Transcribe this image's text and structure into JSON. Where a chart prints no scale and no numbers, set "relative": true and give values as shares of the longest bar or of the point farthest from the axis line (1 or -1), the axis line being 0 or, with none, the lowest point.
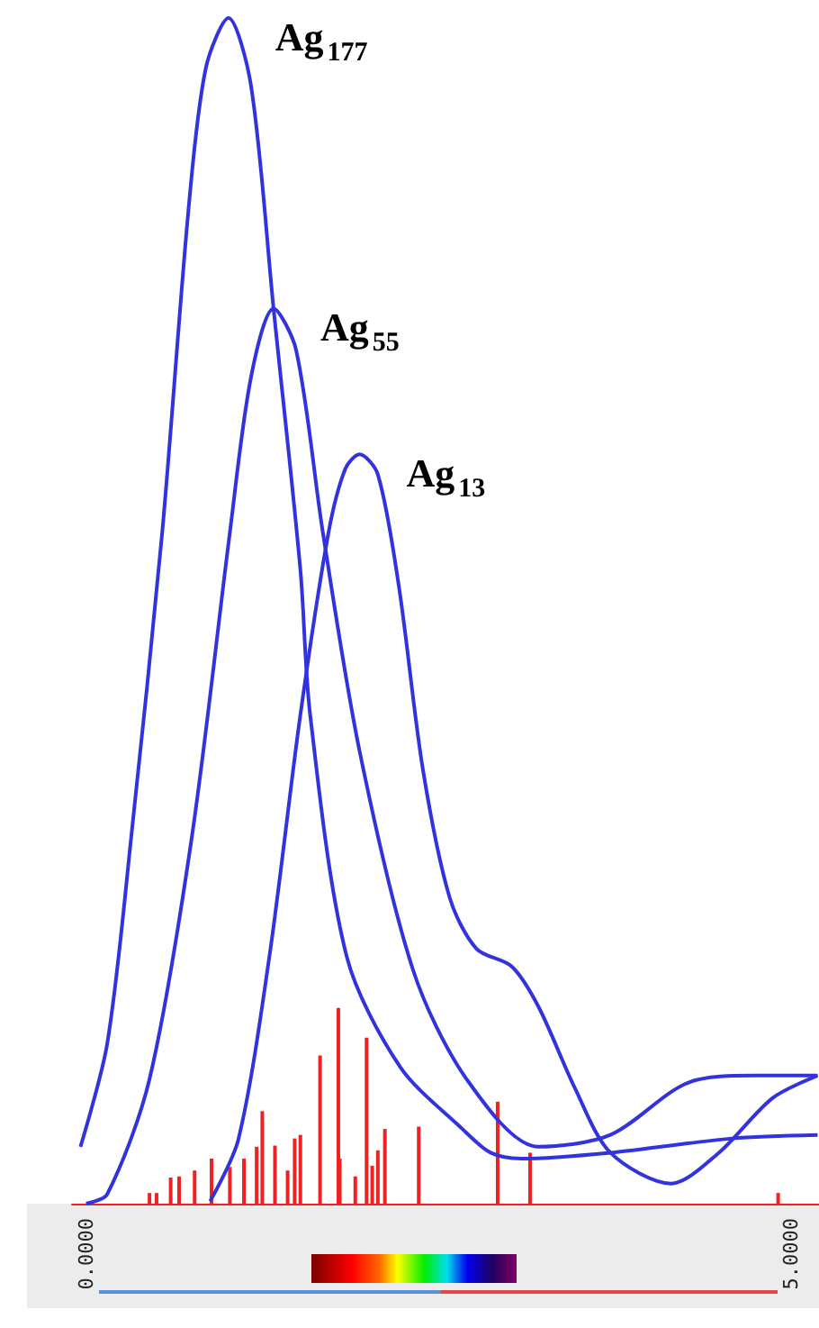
{
  "chart_data": {
    "type": "line",
    "relative": true,
    "xlim": [
      -0.1,
      5.2
    ],
    "xticks": [
      {
        "value": 0,
        "label": "0.0000"
      },
      {
        "value": 5,
        "label": "5.0000"
      }
    ],
    "series": [
      {
        "name": "Ag$_{177}$",
        "color": "#3333dd",
        "x": [
          -0.04,
          0.15,
          0.32,
          0.54,
          0.73,
          0.85,
          1.01,
          1.17,
          1.33,
          1.52,
          1.59,
          1.85,
          2.23,
          2.67,
          2.87,
          3.09,
          3.72,
          4.58,
          5.19
        ],
        "values": [
          0.048,
          0.135,
          0.309,
          0.566,
          0.843,
          0.958,
          1,
          0.943,
          0.755,
          0.535,
          0.412,
          0.208,
          0.115,
          0.063,
          0.043,
          0.038,
          0.043,
          0.055,
          0.058
        ]
      },
      {
        "name": "Ag$_{55}$",
        "color": "#3333dd",
        "x": [
          0,
          0.15,
          0.45,
          0.75,
          1.02,
          1.17,
          1.33,
          1.49,
          1.68,
          1.94,
          2.32,
          2.7,
          3.21,
          3.72,
          4.27,
          4.74,
          5.19
        ],
        "values": [
          0,
          0.008,
          0.105,
          0.309,
          0.566,
          0.697,
          0.755,
          0.72,
          0.566,
          0.382,
          0.197,
          0.105,
          0.048,
          0.058,
          0.102,
          0.108,
          0.108
        ]
      },
      {
        "name": "Ag$_{13}$",
        "color": "#3333dd",
        "x": [
          0.88,
          1.08,
          1.3,
          1.52,
          1.72,
          1.84,
          1.94,
          2.07,
          2.22,
          2.39,
          2.58,
          2.77,
          3.02,
          3.21,
          3.47,
          3.72,
          4.15,
          4.49,
          4.87,
          5.19
        ],
        "values": [
          0.002,
          0.054,
          0.208,
          0.412,
          0.566,
          0.62,
          0.632,
          0.615,
          0.52,
          0.366,
          0.258,
          0.215,
          0.2,
          0.166,
          0.097,
          0.043,
          0.017,
          0.043,
          0.089,
          0.108
        ]
      },
      {
        "type": "bar",
        "color": "#ee2222",
        "x": [
          0.45,
          0.5,
          0.6,
          0.66,
          0.77,
          0.89,
          1.02,
          1.12,
          1.21,
          1.25,
          1.34,
          1.43,
          1.48,
          1.52,
          1.66,
          1.79,
          1.8,
          1.91,
          1.99,
          2.03,
          2.07,
          2.12,
          2.36,
          2.92,
          3.15,
          4.91
        ],
        "values": [
          0.009,
          0.009,
          0.022,
          0.023,
          0.028,
          0.038,
          0.031,
          0.038,
          0.048,
          0.078,
          0.049,
          0.028,
          0.055,
          0.058,
          0.125,
          0.165,
          0.038,
          0.023,
          0.14,
          0.032,
          0.045,
          0.063,
          0.065,
          0.086,
          0.043,
          0.009
        ]
      }
    ]
  }
}
